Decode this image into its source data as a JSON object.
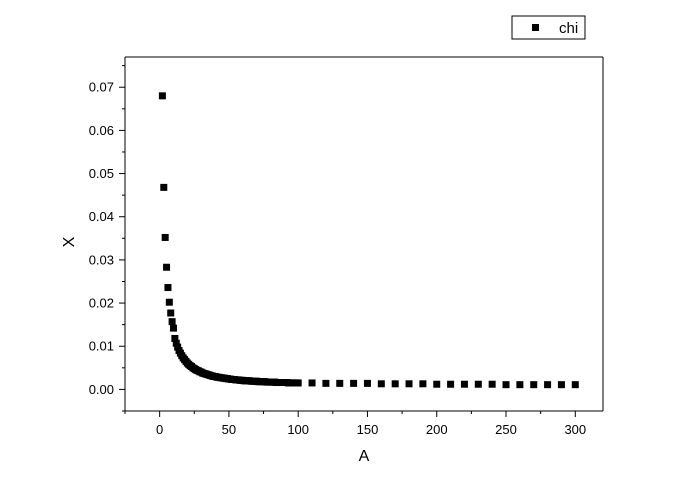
{
  "chart_data": {
    "type": "scatter",
    "xlabel": "A",
    "ylabel": "X",
    "xlim": [
      -25,
      320
    ],
    "ylim": [
      -0.005,
      0.077
    ],
    "x_ticks": [
      0,
      50,
      100,
      150,
      200,
      250,
      300
    ],
    "y_ticks": [
      0.0,
      0.01,
      0.02,
      0.03,
      0.04,
      0.05,
      0.06,
      0.07
    ],
    "y_tick_labels": [
      "0.00",
      "0.01",
      "0.02",
      "0.03",
      "0.04",
      "0.05",
      "0.06",
      "0.07"
    ],
    "x_tick_labels": [
      "0",
      "50",
      "100",
      "150",
      "200",
      "250",
      "300"
    ],
    "grid": false,
    "legend_position": "top-right",
    "series": [
      {
        "name": "chi",
        "marker": "square",
        "color": "#000000",
        "x": [
          2,
          3,
          4,
          5,
          6,
          7,
          8,
          9,
          10,
          11,
          12,
          13,
          14,
          15,
          16,
          17,
          18,
          19,
          20,
          21,
          22,
          23,
          24,
          25,
          26,
          27,
          28,
          29,
          30,
          31,
          32,
          33,
          34,
          35,
          36,
          37,
          38,
          39,
          40,
          41,
          42,
          43,
          44,
          45,
          46,
          47,
          48,
          49,
          50,
          51,
          52,
          53,
          54,
          55,
          56,
          57,
          58,
          59,
          60,
          61,
          62,
          63,
          64,
          65,
          66,
          67,
          68,
          69,
          70,
          71,
          72,
          73,
          74,
          75,
          76,
          77,
          78,
          79,
          80,
          81,
          82,
          83,
          84,
          85,
          86,
          87,
          88,
          89,
          90,
          91,
          92,
          93,
          94,
          95,
          96,
          97,
          98,
          99,
          100,
          110,
          120,
          130,
          140,
          150,
          160,
          170,
          180,
          190,
          200,
          210,
          220,
          230,
          240,
          250,
          260,
          270,
          280,
          290,
          300
        ],
        "y": [
          0.068,
          0.0468,
          0.0352,
          0.0283,
          0.0236,
          0.0202,
          0.0177,
          0.0157,
          0.0142,
          0.0118,
          0.0107,
          0.0098,
          0.009,
          0.0084,
          0.0078,
          0.0073,
          0.0069,
          0.0065,
          0.0061,
          0.0058,
          0.0055,
          0.0053,
          0.005,
          0.0048,
          0.0046,
          0.0044,
          0.0043,
          0.0041,
          0.004,
          0.0038,
          0.0037,
          0.0036,
          0.0035,
          0.0034,
          0.0033,
          0.0032,
          0.0031,
          0.003,
          0.003,
          0.0029,
          0.0028,
          0.0028,
          0.0027,
          0.0027,
          0.0026,
          0.0026,
          0.0025,
          0.0025,
          0.0024,
          0.0024,
          0.0023,
          0.0023,
          0.0023,
          0.0022,
          0.0022,
          0.0022,
          0.0021,
          0.0021,
          0.0021,
          0.002,
          0.002,
          0.002,
          0.002,
          0.002,
          0.0019,
          0.0019,
          0.0019,
          0.0019,
          0.0019,
          0.0018,
          0.0018,
          0.0018,
          0.0018,
          0.0018,
          0.0018,
          0.0017,
          0.0017,
          0.0017,
          0.0017,
          0.0017,
          0.0017,
          0.0017,
          0.0016,
          0.0016,
          0.0016,
          0.0016,
          0.0016,
          0.0016,
          0.0016,
          0.0016,
          0.0016,
          0.0015,
          0.0015,
          0.0015,
          0.0015,
          0.0015,
          0.0015,
          0.0015,
          0.0015,
          0.0015,
          0.0014,
          0.0014,
          0.0014,
          0.0014,
          0.0013,
          0.0013,
          0.0013,
          0.0013,
          0.0012,
          0.0012,
          0.0012,
          0.0012,
          0.0012,
          0.0011,
          0.0011,
          0.0011,
          0.0011,
          0.0011,
          0.0011
        ]
      }
    ]
  }
}
